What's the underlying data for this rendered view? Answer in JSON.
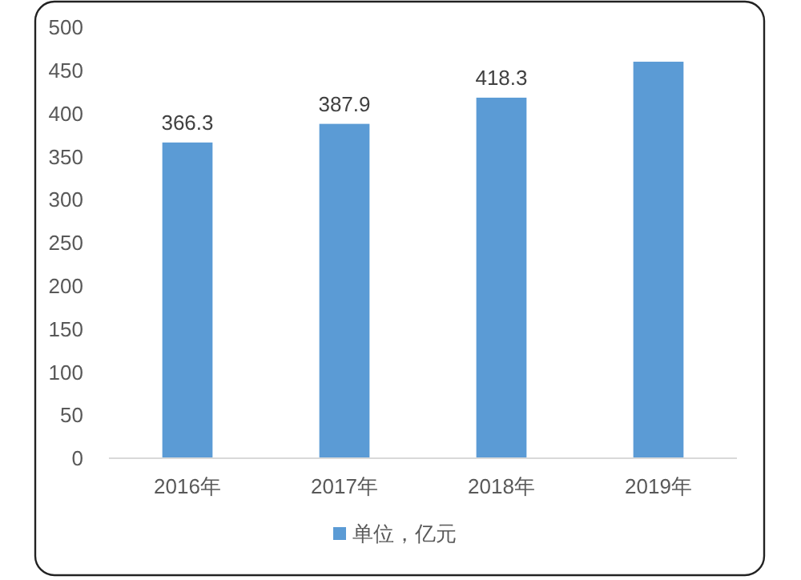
{
  "chart_data": {
    "type": "bar",
    "categories": [
      "2016年",
      "2017年",
      "2018年",
      "2019年"
    ],
    "series": [
      {
        "name": "单位，亿元",
        "color": "#5b9bd5",
        "values": [
          366.3,
          387.9,
          418.3,
          460
        ],
        "value_labels": [
          "366.3",
          "387.9",
          "418.3",
          null
        ]
      }
    ],
    "ylim": [
      0,
      500
    ],
    "yticks": [
      0,
      50,
      100,
      150,
      200,
      250,
      300,
      350,
      400,
      450,
      500
    ],
    "grid": false,
    "legend": "bottom"
  }
}
